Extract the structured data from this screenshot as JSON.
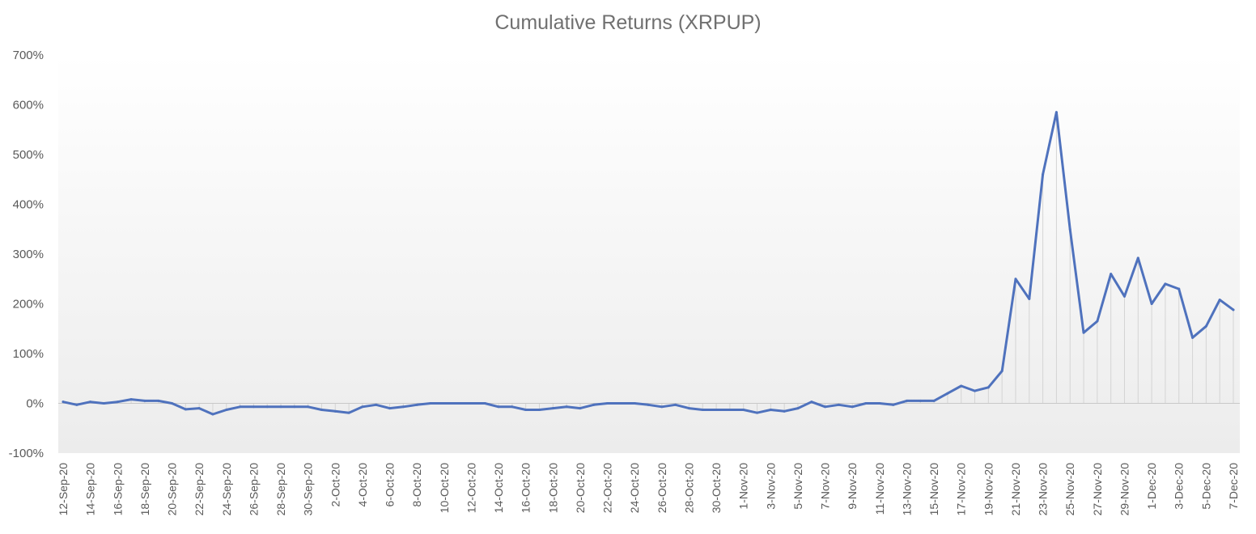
{
  "chart_data": {
    "type": "line",
    "title": "Cumulative Returns (XRPUP)",
    "xlabel": "",
    "ylabel": "",
    "ylim": [
      -100,
      700
    ],
    "yticks": [
      -100,
      0,
      100,
      200,
      300,
      400,
      500,
      600,
      700
    ],
    "ytick_labels": [
      "-100%",
      "0%",
      "100%",
      "200%",
      "300%",
      "400%",
      "500%",
      "600%",
      "700%"
    ],
    "grid": "vertical drop lines from each point to 0%",
    "legend": "none",
    "line_color": "#4f72bd",
    "x": [
      "12-Sep-20",
      "13-Sep-20",
      "14-Sep-20",
      "15-Sep-20",
      "16-Sep-20",
      "17-Sep-20",
      "18-Sep-20",
      "19-Sep-20",
      "20-Sep-20",
      "21-Sep-20",
      "22-Sep-20",
      "23-Sep-20",
      "24-Sep-20",
      "25-Sep-20",
      "26-Sep-20",
      "27-Sep-20",
      "28-Sep-20",
      "29-Sep-20",
      "30-Sep-20",
      "1-Oct-20",
      "2-Oct-20",
      "3-Oct-20",
      "4-Oct-20",
      "5-Oct-20",
      "6-Oct-20",
      "7-Oct-20",
      "8-Oct-20",
      "9-Oct-20",
      "10-Oct-20",
      "11-Oct-20",
      "12-Oct-20",
      "13-Oct-20",
      "14-Oct-20",
      "15-Oct-20",
      "16-Oct-20",
      "17-Oct-20",
      "18-Oct-20",
      "19-Oct-20",
      "20-Oct-20",
      "21-Oct-20",
      "22-Oct-20",
      "23-Oct-20",
      "24-Oct-20",
      "25-Oct-20",
      "26-Oct-20",
      "27-Oct-20",
      "28-Oct-20",
      "29-Oct-20",
      "30-Oct-20",
      "31-Oct-20",
      "1-Nov-20",
      "2-Nov-20",
      "3-Nov-20",
      "4-Nov-20",
      "5-Nov-20",
      "6-Nov-20",
      "7-Nov-20",
      "8-Nov-20",
      "9-Nov-20",
      "10-Nov-20",
      "11-Nov-20",
      "12-Nov-20",
      "13-Nov-20",
      "14-Nov-20",
      "15-Nov-20",
      "16-Nov-20",
      "17-Nov-20",
      "18-Nov-20",
      "19-Nov-20",
      "20-Nov-20",
      "21-Nov-20",
      "22-Nov-20",
      "23-Nov-20",
      "24-Nov-20",
      "25-Nov-20",
      "26-Nov-20",
      "27-Nov-20",
      "28-Nov-20",
      "29-Nov-20",
      "30-Nov-20",
      "1-Dec-20",
      "2-Dec-20",
      "3-Dec-20",
      "4-Dec-20",
      "5-Dec-20",
      "6-Dec-20",
      "7-Dec-20"
    ],
    "x_tick_labels": [
      "12-Sep-20",
      "14-Sep-20",
      "16-Sep-20",
      "18-Sep-20",
      "20-Sep-20",
      "22-Sep-20",
      "24-Sep-20",
      "26-Sep-20",
      "28-Sep-20",
      "30-Sep-20",
      "2-Oct-20",
      "4-Oct-20",
      "6-Oct-20",
      "8-Oct-20",
      "10-Oct-20",
      "12-Oct-20",
      "14-Oct-20",
      "16-Oct-20",
      "18-Oct-20",
      "20-Oct-20",
      "22-Oct-20",
      "24-Oct-20",
      "26-Oct-20",
      "28-Oct-20",
      "30-Oct-20",
      "1-Nov-20",
      "3-Nov-20",
      "5-Nov-20",
      "7-Nov-20",
      "9-Nov-20",
      "11-Nov-20",
      "13-Nov-20",
      "15-Nov-20",
      "17-Nov-20",
      "19-Nov-20",
      "21-Nov-20",
      "23-Nov-20",
      "25-Nov-20",
      "27-Nov-20",
      "29-Nov-20",
      "1-Dec-20",
      "3-Dec-20",
      "5-Dec-20",
      "7-Dec-20"
    ],
    "series": [
      {
        "values": [
          3,
          -3,
          3,
          0,
          3,
          8,
          5,
          5,
          0,
          -12,
          -10,
          -22,
          -13,
          -7,
          -7,
          -7,
          -7,
          -7,
          -7,
          -13,
          -16,
          -19,
          -7,
          -3,
          -10,
          -7,
          -3,
          0,
          0,
          0,
          0,
          0,
          -7,
          -7,
          -13,
          -13,
          -10,
          -7,
          -10,
          -3,
          0,
          0,
          0,
          -3,
          -7,
          -3,
          -10,
          -13,
          -13,
          -13,
          -13,
          -19,
          -13,
          -16,
          -10,
          3,
          -7,
          -3,
          -7,
          0,
          0,
          -3,
          5,
          5,
          5,
          20,
          35,
          25,
          32,
          65,
          250,
          210,
          460,
          585,
          350,
          142,
          165,
          260,
          215,
          292,
          200,
          240,
          230,
          132,
          155,
          208,
          188
        ]
      }
    ]
  }
}
